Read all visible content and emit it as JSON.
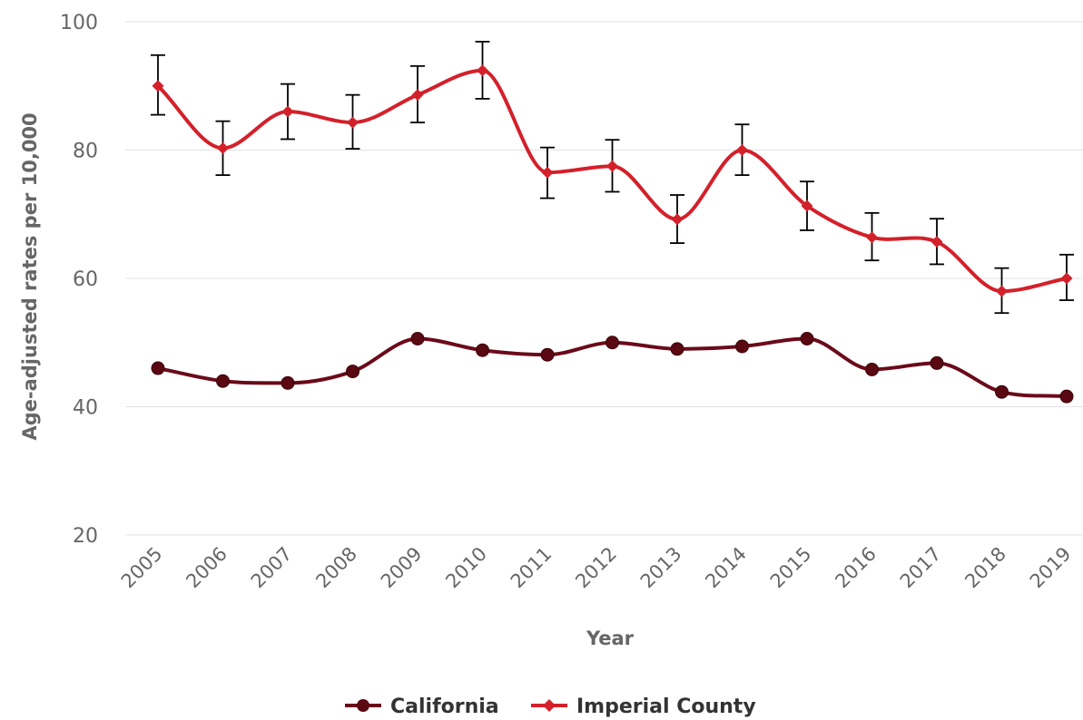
{
  "chart_data": {
    "type": "line",
    "title": "",
    "xlabel": "Year",
    "ylabel": "Age-adjusted rates per 10,000",
    "categories": [
      "2005",
      "2006",
      "2007",
      "2008",
      "2009",
      "2010",
      "2011",
      "2012",
      "2013",
      "2014",
      "2015",
      "2016",
      "2017",
      "2018",
      "2019"
    ],
    "ylim": [
      20,
      100
    ],
    "yticks": [
      "20",
      "40",
      "60",
      "80",
      "100"
    ],
    "grid": "horizontal",
    "legend_position": "bottom-center",
    "series": [
      {
        "name": "California",
        "color": "#6b0a1a",
        "marker": "circle",
        "values": [
          46.0,
          44.0,
          43.7,
          45.5,
          50.6,
          48.8,
          48.1,
          50.0,
          49.0,
          49.4,
          50.6,
          45.8,
          46.8,
          42.3,
          41.6
        ]
      },
      {
        "name": "Imperial County",
        "color": "#d4202a",
        "marker": "diamond",
        "values": [
          90.0,
          80.3,
          86.0,
          84.3,
          88.6,
          92.4,
          76.5,
          77.5,
          69.2,
          80.0,
          71.3,
          66.4,
          65.7,
          58.0,
          60.0
        ],
        "error_low": [
          85.5,
          76.1,
          81.7,
          80.2,
          84.3,
          88.0,
          72.5,
          73.5,
          65.5,
          76.1,
          67.5,
          62.8,
          62.2,
          54.6,
          56.6
        ],
        "error_high": [
          94.8,
          84.5,
          90.3,
          88.6,
          93.1,
          96.9,
          80.4,
          81.6,
          73.0,
          84.0,
          75.1,
          70.2,
          69.3,
          61.6,
          63.7
        ]
      }
    ]
  }
}
